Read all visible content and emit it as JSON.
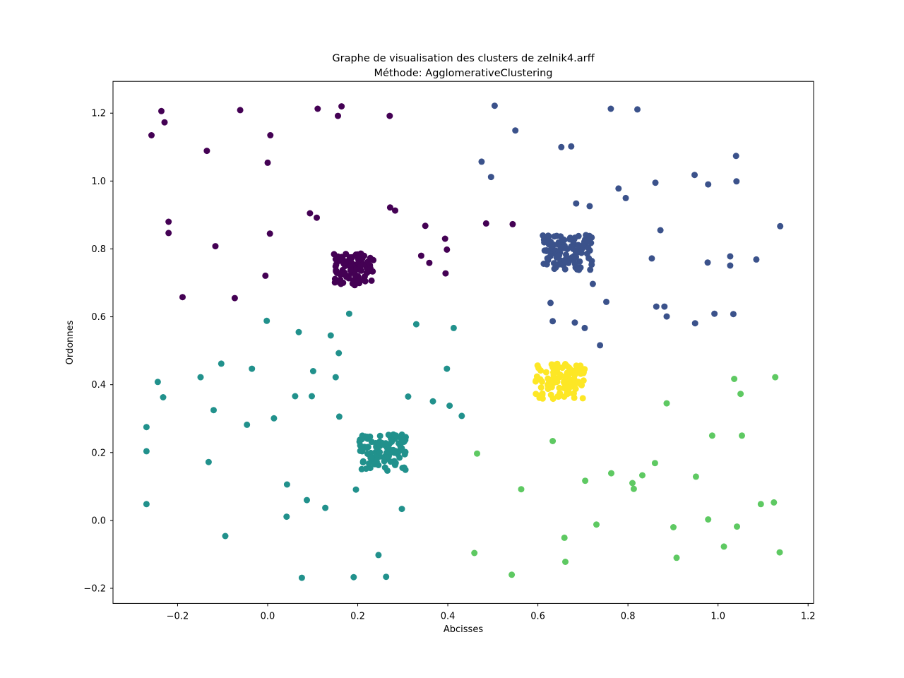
{
  "chart_data": {
    "type": "scatter",
    "title": "Graphe de visualisation des clusters de zelnik4.arff",
    "subtitle": "Méthode: AgglomerativeClustering",
    "xlabel": "Abcisses",
    "ylabel": "Ordonnes",
    "xlim": [
      -0.3434,
      1.2122
    ],
    "ylim": [
      -0.2445,
      1.2937
    ],
    "grid": false,
    "legend": "none",
    "marker_radius": 4.5,
    "xticks": [
      {
        "v": -0.2,
        "label": "−0.2"
      },
      {
        "v": 0.0,
        "label": "0.0"
      },
      {
        "v": 0.2,
        "label": "0.2"
      },
      {
        "v": 0.4,
        "label": "0.4"
      },
      {
        "v": 0.6,
        "label": "0.6"
      },
      {
        "v": 0.8,
        "label": "0.8"
      },
      {
        "v": 1.0,
        "label": "1.0"
      },
      {
        "v": 1.2,
        "label": "1.2"
      }
    ],
    "yticks": [
      {
        "v": -0.2,
        "label": "−0.2"
      },
      {
        "v": 0.0,
        "label": "0.0"
      },
      {
        "v": 0.2,
        "label": "0.2"
      },
      {
        "v": 0.4,
        "label": "0.4"
      },
      {
        "v": 0.6,
        "label": "0.6"
      },
      {
        "v": 0.8,
        "label": "0.8"
      },
      {
        "v": 1.0,
        "label": "1.0"
      },
      {
        "v": 1.2,
        "label": "1.2"
      }
    ],
    "clusters": [
      {
        "name": "cluster-0-purple",
        "color": "#440154",
        "blob": {
          "cx": 0.192,
          "cy": 0.74,
          "half_w": 0.045,
          "half_h": 0.047,
          "count": 100,
          "seed": 101
        },
        "points": [
          [
            -0.236,
            1.206
          ],
          [
            -0.229,
            1.173
          ],
          [
            -0.258,
            1.135
          ],
          [
            -0.061,
            1.209
          ],
          [
            0.111,
            1.213
          ],
          [
            0.164,
            1.22
          ],
          [
            0.156,
            1.192
          ],
          [
            0.271,
            1.192
          ],
          [
            0.006,
            1.135
          ],
          [
            -0.135,
            1.089
          ],
          [
            0.0,
            1.054
          ],
          [
            -0.22,
            0.88
          ],
          [
            -0.22,
            0.847
          ],
          [
            0.094,
            0.905
          ],
          [
            0.109,
            0.892
          ],
          [
            0.272,
            0.922
          ],
          [
            0.283,
            0.913
          ],
          [
            0.005,
            0.845
          ],
          [
            -0.116,
            0.808
          ],
          [
            0.35,
            0.868
          ],
          [
            0.394,
            0.83
          ],
          [
            0.341,
            0.78
          ],
          [
            0.359,
            0.759
          ],
          [
            0.398,
            0.798
          ],
          [
            0.395,
            0.728
          ],
          [
            -0.005,
            0.721
          ],
          [
            -0.189,
            0.658
          ],
          [
            -0.073,
            0.655
          ],
          [
            0.485,
            0.875
          ],
          [
            0.544,
            0.873
          ]
        ]
      },
      {
        "name": "cluster-1-blue",
        "color": "#3b528b",
        "blob": {
          "cx": 0.665,
          "cy": 0.788,
          "half_w": 0.055,
          "half_h": 0.0535,
          "count": 110,
          "seed": 202
        },
        "points": [
          [
            0.504,
            1.222
          ],
          [
            0.762,
            1.213
          ],
          [
            0.821,
            1.211
          ],
          [
            0.55,
            1.149
          ],
          [
            0.652,
            1.1
          ],
          [
            0.674,
            1.102
          ],
          [
            0.475,
            1.057
          ],
          [
            0.496,
            1.012
          ],
          [
            1.04,
            1.074
          ],
          [
            0.948,
            1.018
          ],
          [
            0.978,
            0.99
          ],
          [
            1.041,
            0.999
          ],
          [
            0.861,
            0.995
          ],
          [
            0.779,
            0.978
          ],
          [
            0.795,
            0.95
          ],
          [
            0.685,
            0.934
          ],
          [
            0.715,
            0.926
          ],
          [
            1.138,
            0.867
          ],
          [
            0.872,
            0.855
          ],
          [
            0.853,
            0.772
          ],
          [
            0.977,
            0.76
          ],
          [
            1.027,
            0.778
          ],
          [
            1.027,
            0.751
          ],
          [
            1.085,
            0.769
          ],
          [
            0.722,
            0.697
          ],
          [
            0.752,
            0.644
          ],
          [
            0.628,
            0.641
          ],
          [
            0.863,
            0.63
          ],
          [
            0.881,
            0.63
          ],
          [
            0.886,
            0.601
          ],
          [
            0.633,
            0.587
          ],
          [
            0.682,
            0.583
          ],
          [
            0.704,
            0.567
          ],
          [
            0.949,
            0.581
          ],
          [
            0.992,
            0.609
          ],
          [
            1.034,
            0.608
          ],
          [
            0.738,
            0.516
          ]
        ]
      },
      {
        "name": "cluster-2-teal",
        "color": "#21918c",
        "blob": {
          "cx": 0.2555,
          "cy": 0.2,
          "half_w": 0.0515,
          "half_h": 0.054,
          "count": 110,
          "seed": 303
        },
        "points": [
          [
            -0.002,
            0.588
          ],
          [
            0.181,
            0.609
          ],
          [
            0.069,
            0.555
          ],
          [
            0.14,
            0.545
          ],
          [
            0.33,
            0.578
          ],
          [
            0.413,
            0.567
          ],
          [
            0.158,
            0.493
          ],
          [
            -0.103,
            0.462
          ],
          [
            -0.035,
            0.447
          ],
          [
            -0.149,
            0.422
          ],
          [
            -0.244,
            0.408
          ],
          [
            0.101,
            0.44
          ],
          [
            0.151,
            0.422
          ],
          [
            0.398,
            0.447
          ],
          [
            -0.232,
            0.363
          ],
          [
            0.061,
            0.366
          ],
          [
            0.098,
            0.366
          ],
          [
            0.312,
            0.365
          ],
          [
            0.367,
            0.351
          ],
          [
            0.404,
            0.338
          ],
          [
            -0.12,
            0.325
          ],
          [
            0.431,
            0.308
          ],
          [
            0.014,
            0.301
          ],
          [
            -0.046,
            0.282
          ],
          [
            -0.269,
            0.275
          ],
          [
            0.159,
            0.306
          ],
          [
            -0.269,
            0.204
          ],
          [
            -0.131,
            0.172
          ],
          [
            0.043,
            0.106
          ],
          [
            0.196,
            0.091
          ],
          [
            0.087,
            0.06
          ],
          [
            0.128,
            0.037
          ],
          [
            0.042,
            0.011
          ],
          [
            -0.269,
            0.048
          ],
          [
            0.298,
            0.034
          ],
          [
            -0.094,
            -0.046
          ],
          [
            0.246,
            -0.102
          ],
          [
            0.076,
            -0.169
          ],
          [
            0.191,
            -0.167
          ],
          [
            0.263,
            -0.166
          ]
        ]
      },
      {
        "name": "cluster-3-green",
        "color": "#5ec962",
        "blob": null,
        "points": [
          [
            0.886,
            0.345
          ],
          [
            1.036,
            0.417
          ],
          [
            1.127,
            0.422
          ],
          [
            1.05,
            0.373
          ],
          [
            0.987,
            0.25
          ],
          [
            1.053,
            0.25
          ],
          [
            0.633,
            0.234
          ],
          [
            0.465,
            0.197
          ],
          [
            0.86,
            0.169
          ],
          [
            0.763,
            0.139
          ],
          [
            0.832,
            0.133
          ],
          [
            0.705,
            0.117
          ],
          [
            0.81,
            0.11
          ],
          [
            0.813,
            0.093
          ],
          [
            0.563,
            0.092
          ],
          [
            0.951,
            0.129
          ],
          [
            1.095,
            0.048
          ],
          [
            1.124,
            0.053
          ],
          [
            0.978,
            0.003
          ],
          [
            0.901,
            -0.02
          ],
          [
            1.042,
            -0.018
          ],
          [
            0.73,
            -0.012
          ],
          [
            0.659,
            -0.051
          ],
          [
            1.013,
            -0.077
          ],
          [
            0.459,
            -0.096
          ],
          [
            1.137,
            -0.094
          ],
          [
            0.908,
            -0.11
          ],
          [
            0.661,
            -0.122
          ],
          [
            0.542,
            -0.16
          ]
        ]
      },
      {
        "name": "cluster-4-yellow",
        "color": "#fde725",
        "blob": {
          "cx": 0.649,
          "cy": 0.41,
          "half_w": 0.055,
          "half_h": 0.052,
          "count": 100,
          "seed": 404
        },
        "points": []
      }
    ]
  }
}
